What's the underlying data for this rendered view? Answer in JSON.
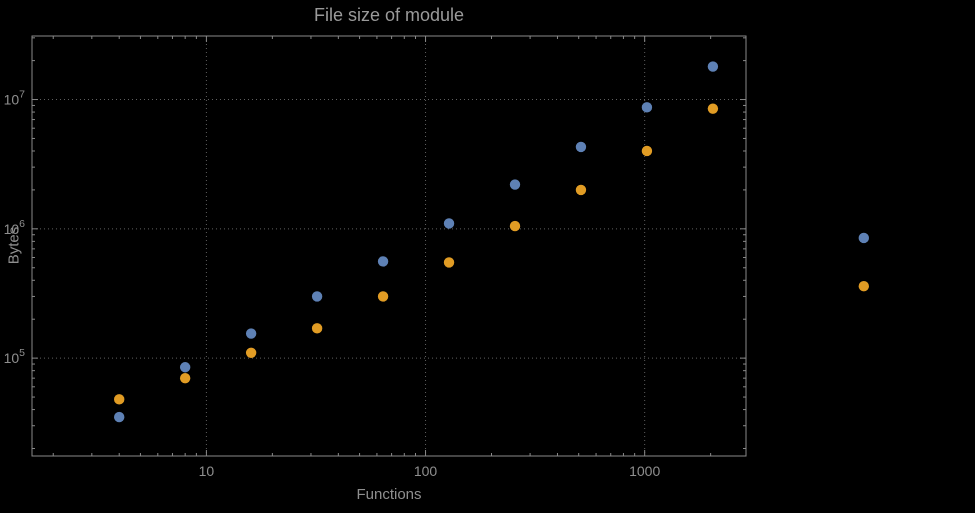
{
  "chart_data": {
    "type": "scatter",
    "title": "File size of module",
    "xlabel": "Functions",
    "ylabel": "Bytes",
    "x_scale": "log",
    "y_scale": "log",
    "xlim": [
      1.6,
      2900
    ],
    "ylim": [
      17500,
      31000000
    ],
    "grid": true,
    "grid_style": "dotted",
    "legend": "none",
    "x_ticks": [
      {
        "value": 10,
        "label": "10"
      },
      {
        "value": 100,
        "label": "100"
      },
      {
        "value": 1000,
        "label": "1000"
      }
    ],
    "y_ticks": [
      {
        "value": 100000,
        "base": "10",
        "exp": "5"
      },
      {
        "value": 1000000,
        "base": "10",
        "exp": "6"
      },
      {
        "value": 10000000,
        "base": "10",
        "exp": "7"
      }
    ],
    "series": [
      {
        "name": "series-1-blue",
        "color": "#5e81b5",
        "points": [
          [
            4,
            35000
          ],
          [
            8,
            85000
          ],
          [
            16,
            155000
          ],
          [
            32,
            300000
          ],
          [
            64,
            560000
          ],
          [
            128,
            1100000
          ],
          [
            256,
            2200000
          ],
          [
            512,
            4300000
          ],
          [
            1024,
            8700000
          ],
          [
            2048,
            18000000
          ],
          [
            10000,
            850000
          ]
        ]
      },
      {
        "name": "series-2-orange",
        "color": "#e19c24",
        "points": [
          [
            4,
            48000
          ],
          [
            8,
            70000
          ],
          [
            16,
            110000
          ],
          [
            32,
            170000
          ],
          [
            64,
            300000
          ],
          [
            128,
            550000
          ],
          [
            256,
            1050000
          ],
          [
            512,
            2000000
          ],
          [
            1024,
            4000000
          ],
          [
            2048,
            8500000
          ],
          [
            10000,
            360000
          ]
        ]
      }
    ],
    "colors": {
      "background": "#000000",
      "text": "#9a9a9a",
      "tick_text": "#8f8f8f",
      "grid": "#5f5f5f",
      "frame": "#8a8a8a"
    }
  }
}
